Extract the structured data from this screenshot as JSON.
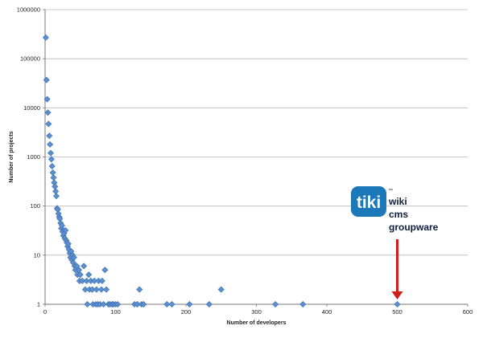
{
  "chart_data": {
    "type": "scatter",
    "title": "",
    "xlabel": "Number of developers",
    "ylabel": "Number of projects",
    "xlim": [
      0,
      600
    ],
    "ylim": [
      1,
      1000000
    ],
    "y_scale": "log",
    "grid": true,
    "legend": "none",
    "x_ticks": [
      "0",
      "100",
      "200",
      "300",
      "400",
      "500",
      "600"
    ],
    "y_ticks": [
      "1",
      "10",
      "100",
      "1000",
      "10000",
      "100000",
      "1000000"
    ],
    "marker_color": "#5b8fcf",
    "points": [
      {
        "x": 1,
        "y": 270000
      },
      {
        "x": 2,
        "y": 37000
      },
      {
        "x": 3,
        "y": 15000
      },
      {
        "x": 4,
        "y": 8000
      },
      {
        "x": 5,
        "y": 4700
      },
      {
        "x": 6,
        "y": 2700
      },
      {
        "x": 7,
        "y": 1800
      },
      {
        "x": 8,
        "y": 1200
      },
      {
        "x": 9,
        "y": 900
      },
      {
        "x": 10,
        "y": 650
      },
      {
        "x": 11,
        "y": 480
      },
      {
        "x": 12,
        "y": 380
      },
      {
        "x": 13,
        "y": 300
      },
      {
        "x": 14,
        "y": 250
      },
      {
        "x": 15,
        "y": 200
      },
      {
        "x": 16,
        "y": 160
      },
      {
        "x": 17,
        "y": 90
      },
      {
        "x": 18,
        "y": 85
      },
      {
        "x": 19,
        "y": 70
      },
      {
        "x": 20,
        "y": 60
      },
      {
        "x": 21,
        "y": 55
      },
      {
        "x": 22,
        "y": 45
      },
      {
        "x": 23,
        "y": 35
      },
      {
        "x": 24,
        "y": 40
      },
      {
        "x": 25,
        "y": 30
      },
      {
        "x": 26,
        "y": 25
      },
      {
        "x": 27,
        "y": 28
      },
      {
        "x": 28,
        "y": 22
      },
      {
        "x": 29,
        "y": 32
      },
      {
        "x": 30,
        "y": 20
      },
      {
        "x": 31,
        "y": 18
      },
      {
        "x": 32,
        "y": 15
      },
      {
        "x": 33,
        "y": 17
      },
      {
        "x": 34,
        "y": 13
      },
      {
        "x": 35,
        "y": 11
      },
      {
        "x": 36,
        "y": 9
      },
      {
        "x": 37,
        "y": 12
      },
      {
        "x": 38,
        "y": 8
      },
      {
        "x": 39,
        "y": 10
      },
      {
        "x": 40,
        "y": 7
      },
      {
        "x": 41,
        "y": 9
      },
      {
        "x": 42,
        "y": 6
      },
      {
        "x": 43,
        "y": 5
      },
      {
        "x": 45,
        "y": 6
      },
      {
        "x": 46,
        "y": 4
      },
      {
        "x": 48,
        "y": 5
      },
      {
        "x": 49,
        "y": 3
      },
      {
        "x": 50,
        "y": 4
      },
      {
        "x": 53,
        "y": 3
      },
      {
        "x": 55,
        "y": 6
      },
      {
        "x": 57,
        "y": 2
      },
      {
        "x": 59,
        "y": 3
      },
      {
        "x": 60,
        "y": 1
      },
      {
        "x": 62,
        "y": 4
      },
      {
        "x": 63,
        "y": 2
      },
      {
        "x": 65,
        "y": 3
      },
      {
        "x": 67,
        "y": 2
      },
      {
        "x": 68,
        "y": 1
      },
      {
        "x": 70,
        "y": 3
      },
      {
        "x": 72,
        "y": 1
      },
      {
        "x": 73,
        "y": 2
      },
      {
        "x": 75,
        "y": 1
      },
      {
        "x": 76,
        "y": 3
      },
      {
        "x": 78,
        "y": 1
      },
      {
        "x": 80,
        "y": 2
      },
      {
        "x": 81,
        "y": 3
      },
      {
        "x": 83,
        "y": 1
      },
      {
        "x": 85,
        "y": 5
      },
      {
        "x": 87,
        "y": 2
      },
      {
        "x": 90,
        "y": 1
      },
      {
        "x": 92,
        "y": 1
      },
      {
        "x": 95,
        "y": 1
      },
      {
        "x": 97,
        "y": 1
      },
      {
        "x": 100,
        "y": 1
      },
      {
        "x": 103,
        "y": 1
      },
      {
        "x": 127,
        "y": 1
      },
      {
        "x": 131,
        "y": 1
      },
      {
        "x": 134,
        "y": 2
      },
      {
        "x": 137,
        "y": 1
      },
      {
        "x": 140,
        "y": 1
      },
      {
        "x": 173,
        "y": 1
      },
      {
        "x": 180,
        "y": 1
      },
      {
        "x": 205,
        "y": 1
      },
      {
        "x": 233,
        "y": 1
      },
      {
        "x": 250,
        "y": 2
      },
      {
        "x": 327,
        "y": 1
      },
      {
        "x": 366,
        "y": 1
      },
      {
        "x": 500,
        "y": 1
      }
    ]
  },
  "annotation": {
    "logo_text": "tiki",
    "lines": [
      "wiki",
      "cms",
      "groupware"
    ],
    "tm": "™",
    "logo_color": "#1c78b8",
    "arrow_color": "#d11d1d",
    "arrow_target": {
      "x": 500,
      "y": 1
    }
  }
}
